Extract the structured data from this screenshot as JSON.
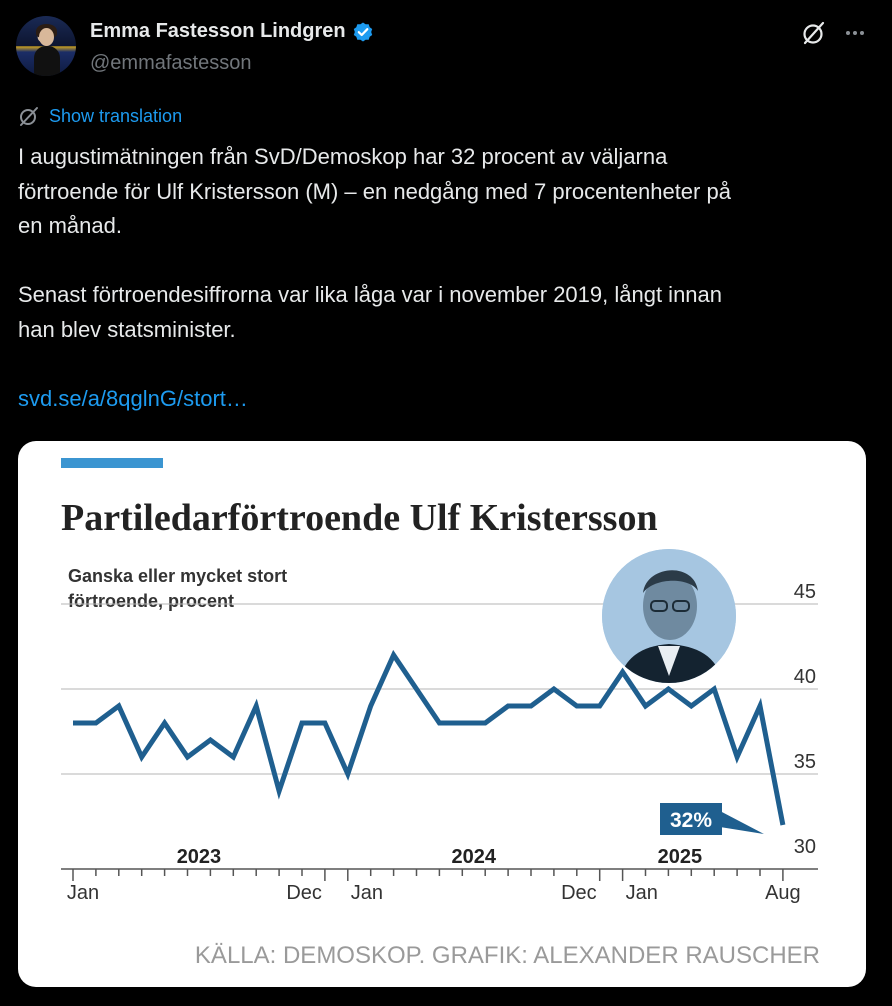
{
  "author": {
    "display_name": "Emma Fastesson Lindgren",
    "handle": "@emmafastesson",
    "verified_icon": "verified-badge-icon",
    "badge_color": "#1d9bf0"
  },
  "actions": {
    "grok_icon": "grok-icon",
    "more_icon": "more-icon"
  },
  "translation": {
    "label": "Show translation"
  },
  "tweet": {
    "paragraph1_line1": "I augustimätningen från SvD/Demoskop har 32 procent av väljarna",
    "paragraph1_line2": "förtroende för Ulf Kristersson (M) – en nedgång med 7 procentenheter på",
    "paragraph1_line3": "en månad.",
    "paragraph2_line1": "Senast förtroendesiffrorna var lika låga var i november 2019, långt innan",
    "paragraph2_line2": "han blev statsminister.",
    "link": "svd.se/a/8qglnG/stort…"
  },
  "card": {
    "accent_color": "#3b95d1",
    "line_color": "#1f5f8f",
    "label_bg": "#1f5f8f",
    "source": "KÄLLA: DEMOSKOP. GRAFIK: ALEXANDER RAUSCHER"
  },
  "chart_data": {
    "type": "line",
    "title": "Partiledarförtroende Ulf Kristersson",
    "subtitle_line1": "Ganska eller mycket stort",
    "subtitle_line2": "förtroende, procent",
    "y_ticks": [
      "45",
      "40",
      "35",
      "30"
    ],
    "ylim": [
      30,
      45
    ],
    "year_labels": [
      "2023",
      "2024",
      "2025"
    ],
    "x_tick_labels": [
      "Jan",
      "Dec",
      "Jan",
      "Dec",
      "Jan",
      "Aug"
    ],
    "annotation": "32%",
    "grid": true,
    "series": [
      {
        "x": [
          "2023-01",
          "2023-02",
          "2023-03",
          "2023-04",
          "2023-05",
          "2023-06",
          "2023-07",
          "2023-08",
          "2023-09",
          "2023-10",
          "2023-11",
          "2023-12",
          "2024-01",
          "2024-02",
          "2024-03",
          "2024-04",
          "2024-05",
          "2024-06",
          "2024-07",
          "2024-08",
          "2024-09",
          "2024-10",
          "2024-11",
          "2024-12",
          "2025-01",
          "2025-02",
          "2025-03",
          "2025-04",
          "2025-05",
          "2025-06",
          "2025-07",
          "2025-08"
        ],
        "values": [
          38,
          38,
          39,
          36,
          38,
          36,
          37,
          36,
          39,
          34,
          38,
          38,
          35,
          39,
          42,
          40,
          38,
          38,
          38,
          39,
          39,
          40,
          39,
          39,
          41,
          39,
          40,
          39,
          40,
          36,
          39,
          32
        ]
      }
    ]
  }
}
